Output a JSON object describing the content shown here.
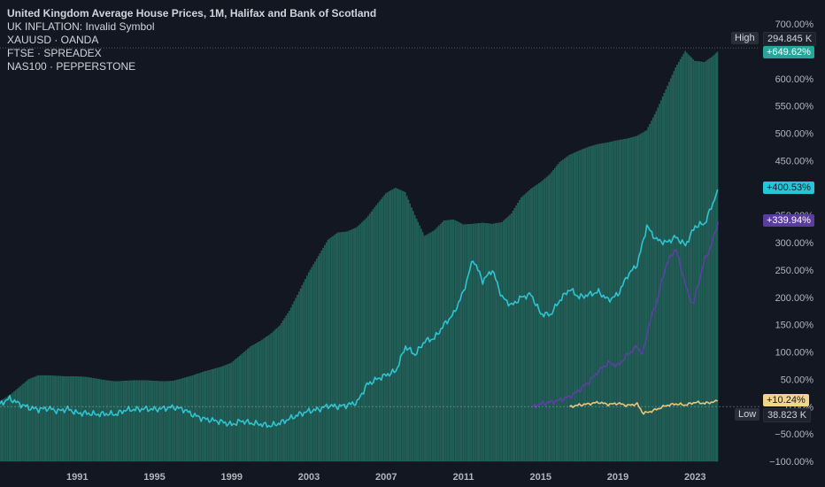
{
  "legend": {
    "title": "United Kingdom Average House Prices, 1M, Halifax and Bank of Scotland",
    "lines": [
      "UK INFLATION: Invalid Symbol",
      "XAUUSD · OANDA",
      "FTSE · SPREADEX",
      "NAS100 · PEPPERSTONE"
    ]
  },
  "colors": {
    "background": "#131722",
    "house_fill": "#1f5a52",
    "house_stroke": "#2a7d6f",
    "gold": "#2fc4d2",
    "nasdaq": "#5e3fa3",
    "ftse": "#e8c77a",
    "high_tag": "#2a2e39",
    "house_tag": "#26a69a",
    "gold_tag": "#26c6da",
    "nasdaq_tag": "#5b3d9e",
    "ftse_tag": "#f3d58a",
    "low_tag": "#2a2e39"
  },
  "tags": {
    "high_label": "High",
    "high_value": "294.845 K",
    "house_pct": "+649.62%",
    "gold_pct": "+400.53%",
    "nasdaq_pct": "+339.94%",
    "ftse_pct": "+10.24%",
    "low_label": "Low",
    "low_value": "38.823 K"
  },
  "chart_data": {
    "type": "line",
    "title": "United Kingdom Average House Prices, 1M, Halifax and Bank of Scotland",
    "y_unit": "%",
    "ylim": [
      -100,
      700
    ],
    "yticks": [
      "700.00%",
      "650.00%",
      "600.00%",
      "550.00%",
      "500.00%",
      "450.00%",
      "400.00%",
      "350.00%",
      "300.00%",
      "250.00%",
      "200.00%",
      "150.00%",
      "100.00%",
      "50.00%",
      "0.00%",
      "−50.00%",
      "−100.00%"
    ],
    "ytick_values": [
      700,
      650,
      600,
      550,
      500,
      450,
      400,
      350,
      300,
      250,
      200,
      150,
      100,
      50,
      0,
      -50,
      -100
    ],
    "xticks": [
      "1991",
      "1995",
      "1999",
      "2003",
      "2007",
      "2011",
      "2015",
      "2019",
      "2023"
    ],
    "xtick_values": [
      1991,
      1995,
      1999,
      2003,
      2007,
      2011,
      2015,
      2019,
      2023
    ],
    "xlim": [
      1987.0,
      2024.5
    ],
    "series": [
      {
        "name": "United Kingdom Average House Prices",
        "style": "columns",
        "points": [
          [
            1987.0,
            10
          ],
          [
            1987.5,
            20
          ],
          [
            1988.0,
            35
          ],
          [
            1988.5,
            50
          ],
          [
            1989.0,
            57
          ],
          [
            1989.5,
            57
          ],
          [
            1990.0,
            56
          ],
          [
            1990.5,
            55
          ],
          [
            1991.0,
            55
          ],
          [
            1991.5,
            54
          ],
          [
            1992.0,
            51
          ],
          [
            1992.5,
            48
          ],
          [
            1993.0,
            46
          ],
          [
            1993.5,
            47
          ],
          [
            1994.0,
            48
          ],
          [
            1994.5,
            48
          ],
          [
            1995.0,
            47
          ],
          [
            1995.5,
            46
          ],
          [
            1996.0,
            47
          ],
          [
            1996.5,
            52
          ],
          [
            1997.0,
            57
          ],
          [
            1997.5,
            63
          ],
          [
            1998.0,
            68
          ],
          [
            1998.5,
            73
          ],
          [
            1999.0,
            80
          ],
          [
            1999.5,
            95
          ],
          [
            2000.0,
            110
          ],
          [
            2000.5,
            120
          ],
          [
            2001.0,
            132
          ],
          [
            2001.5,
            148
          ],
          [
            2002.0,
            175
          ],
          [
            2002.5,
            210
          ],
          [
            2003.0,
            245
          ],
          [
            2003.5,
            275
          ],
          [
            2004.0,
            305
          ],
          [
            2004.5,
            318
          ],
          [
            2005.0,
            320
          ],
          [
            2005.5,
            328
          ],
          [
            2006.0,
            345
          ],
          [
            2006.5,
            368
          ],
          [
            2007.0,
            390
          ],
          [
            2007.5,
            400
          ],
          [
            2008.0,
            392
          ],
          [
            2008.5,
            350
          ],
          [
            2009.0,
            312
          ],
          [
            2009.5,
            322
          ],
          [
            2010.0,
            340
          ],
          [
            2010.5,
            342
          ],
          [
            2011.0,
            333
          ],
          [
            2011.5,
            334
          ],
          [
            2012.0,
            336
          ],
          [
            2012.5,
            334
          ],
          [
            2013.0,
            337
          ],
          [
            2013.5,
            353
          ],
          [
            2014.0,
            382
          ],
          [
            2014.5,
            398
          ],
          [
            2015.0,
            410
          ],
          [
            2015.5,
            425
          ],
          [
            2016.0,
            447
          ],
          [
            2016.5,
            460
          ],
          [
            2017.0,
            468
          ],
          [
            2017.5,
            475
          ],
          [
            2018.0,
            480
          ],
          [
            2018.5,
            483
          ],
          [
            2019.0,
            487
          ],
          [
            2019.5,
            490
          ],
          [
            2020.0,
            495
          ],
          [
            2020.5,
            505
          ],
          [
            2021.0,
            540
          ],
          [
            2021.5,
            580
          ],
          [
            2022.0,
            620
          ],
          [
            2022.5,
            650
          ],
          [
            2023.0,
            632
          ],
          [
            2023.5,
            630
          ],
          [
            2023.9,
            640
          ],
          [
            2024.2,
            649.62
          ]
        ]
      },
      {
        "name": "XAUUSD · OANDA",
        "style": "line",
        "points": [
          [
            1987.0,
            5
          ],
          [
            1987.5,
            15
          ],
          [
            1988.0,
            5
          ],
          [
            1988.5,
            -2
          ],
          [
            1989.0,
            -5
          ],
          [
            1989.5,
            -3
          ],
          [
            1990.0,
            -8
          ],
          [
            1990.5,
            -4
          ],
          [
            1991.0,
            -12
          ],
          [
            1991.5,
            -12
          ],
          [
            1992.0,
            -14
          ],
          [
            1992.5,
            -13
          ],
          [
            1993.0,
            -14
          ],
          [
            1993.5,
            -6
          ],
          [
            1994.0,
            -5
          ],
          [
            1994.5,
            -4
          ],
          [
            1995.0,
            -5
          ],
          [
            1995.5,
            -3
          ],
          [
            1996.0,
            -1
          ],
          [
            1996.5,
            -5
          ],
          [
            1997.0,
            -15
          ],
          [
            1997.5,
            -22
          ],
          [
            1998.0,
            -25
          ],
          [
            1998.5,
            -28
          ],
          [
            1999.0,
            -33
          ],
          [
            1999.5,
            -26
          ],
          [
            2000.0,
            -30
          ],
          [
            2000.5,
            -32
          ],
          [
            2001.0,
            -35
          ],
          [
            2001.5,
            -30
          ],
          [
            2002.0,
            -22
          ],
          [
            2002.5,
            -14
          ],
          [
            2003.0,
            -8
          ],
          [
            2003.5,
            -5
          ],
          [
            2004.0,
            2
          ],
          [
            2004.5,
            0
          ],
          [
            2005.0,
            3
          ],
          [
            2005.5,
            8
          ],
          [
            2006.0,
            40
          ],
          [
            2006.5,
            50
          ],
          [
            2007.0,
            58
          ],
          [
            2007.5,
            65
          ],
          [
            2008.0,
            110
          ],
          [
            2008.5,
            95
          ],
          [
            2009.0,
            120
          ],
          [
            2009.5,
            125
          ],
          [
            2010.0,
            150
          ],
          [
            2010.5,
            170
          ],
          [
            2011.0,
            210
          ],
          [
            2011.5,
            270
          ],
          [
            2012.0,
            230
          ],
          [
            2012.5,
            250
          ],
          [
            2013.0,
            200
          ],
          [
            2013.5,
            185
          ],
          [
            2014.0,
            200
          ],
          [
            2014.5,
            205
          ],
          [
            2015.0,
            170
          ],
          [
            2015.5,
            168
          ],
          [
            2016.0,
            195
          ],
          [
            2016.5,
            215
          ],
          [
            2017.0,
            200
          ],
          [
            2017.5,
            205
          ],
          [
            2018.0,
            210
          ],
          [
            2018.5,
            195
          ],
          [
            2019.0,
            205
          ],
          [
            2019.5,
            240
          ],
          [
            2020.0,
            260
          ],
          [
            2020.5,
            330
          ],
          [
            2021.0,
            305
          ],
          [
            2021.5,
            300
          ],
          [
            2022.0,
            310
          ],
          [
            2022.5,
            295
          ],
          [
            2023.0,
            330
          ],
          [
            2023.5,
            335
          ],
          [
            2023.9,
            370
          ],
          [
            2024.2,
            400.53
          ]
        ]
      },
      {
        "name": "NAS100 · PEPPERSTONE",
        "style": "line",
        "points": [
          [
            2014.6,
            0
          ],
          [
            2015.0,
            5
          ],
          [
            2015.5,
            8
          ],
          [
            2016.0,
            12
          ],
          [
            2016.5,
            18
          ],
          [
            2017.0,
            30
          ],
          [
            2017.5,
            45
          ],
          [
            2018.0,
            65
          ],
          [
            2018.5,
            80
          ],
          [
            2019.0,
            75
          ],
          [
            2019.5,
            95
          ],
          [
            2020.0,
            110
          ],
          [
            2020.3,
            95
          ],
          [
            2020.6,
            150
          ],
          [
            2021.0,
            190
          ],
          [
            2021.5,
            260
          ],
          [
            2022.0,
            290
          ],
          [
            2022.3,
            250
          ],
          [
            2022.6,
            210
          ],
          [
            2022.9,
            185
          ],
          [
            2023.2,
            230
          ],
          [
            2023.5,
            270
          ],
          [
            2023.8,
            290
          ],
          [
            2024.2,
            339.94
          ]
        ]
      },
      {
        "name": "FTSE · SPREADEX",
        "style": "line",
        "points": [
          [
            2016.5,
            0
          ],
          [
            2017.0,
            3
          ],
          [
            2017.5,
            5
          ],
          [
            2018.0,
            8
          ],
          [
            2018.5,
            4
          ],
          [
            2019.0,
            6
          ],
          [
            2019.5,
            2
          ],
          [
            2020.0,
            5
          ],
          [
            2020.3,
            -12
          ],
          [
            2020.6,
            -10
          ],
          [
            2021.0,
            -5
          ],
          [
            2021.5,
            2
          ],
          [
            2022.0,
            5
          ],
          [
            2022.5,
            3
          ],
          [
            2023.0,
            8
          ],
          [
            2023.5,
            6
          ],
          [
            2024.2,
            10.24
          ]
        ]
      }
    ],
    "grid": false,
    "legend_position": "top-left"
  }
}
